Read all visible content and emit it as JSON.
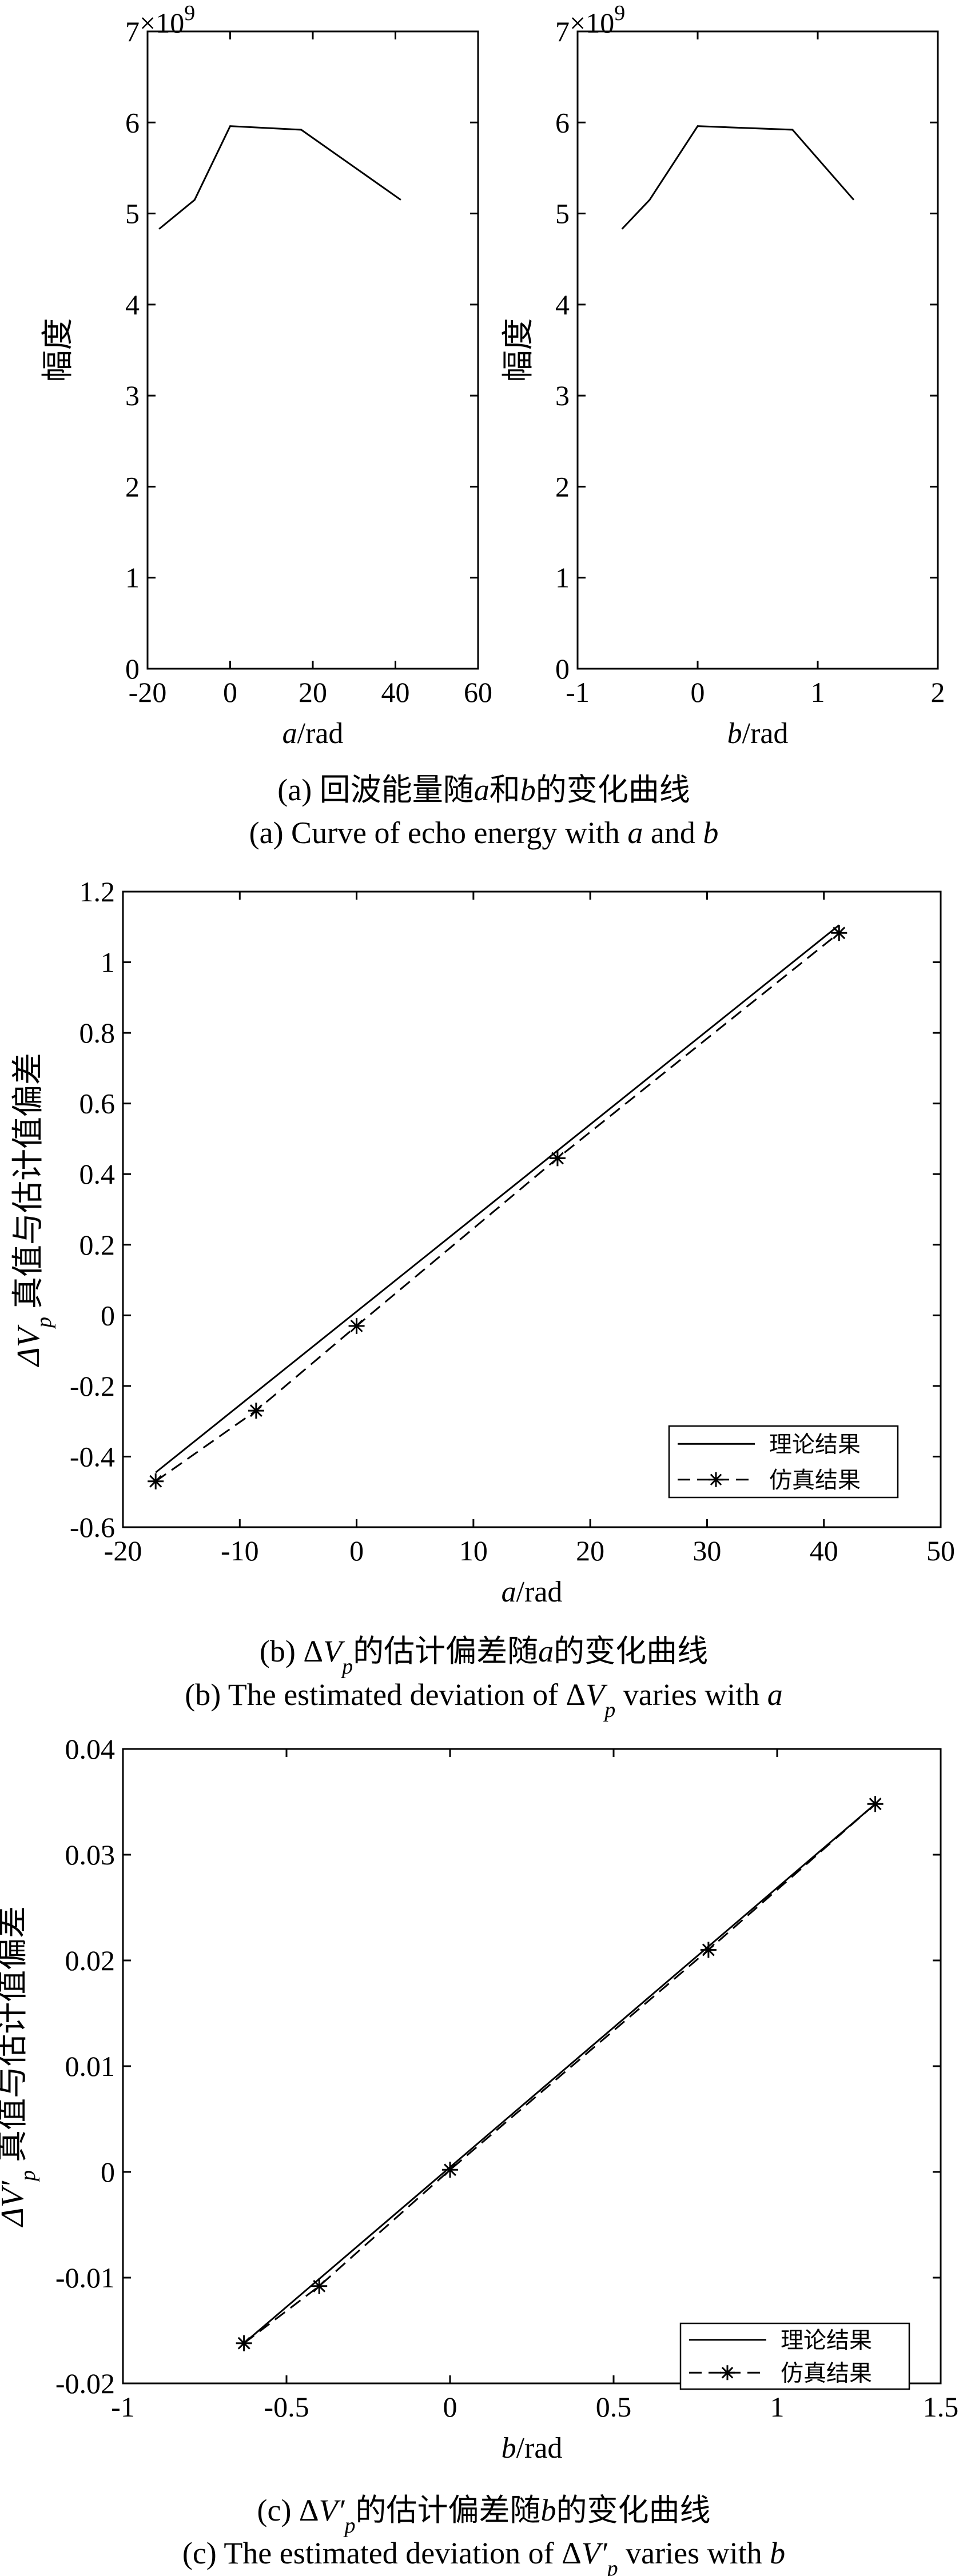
{
  "chart_data": [
    {
      "id": "a1",
      "type": "line",
      "xlim": [
        -20,
        60
      ],
      "ylim": [
        0,
        7
      ],
      "xticks": [
        "-20",
        "0",
        "20",
        "40",
        "60"
      ],
      "yticks": [
        "0",
        "1",
        "2",
        "3",
        "4",
        "5",
        "6",
        "7"
      ],
      "exponent_base": "×10",
      "exponent_power": "9",
      "ylabel": "幅度",
      "xlabel_var": "a",
      "xlabel_unit": "/rad",
      "grid": false,
      "series": [
        {
          "x": [
            -17.2,
            -8.6,
            0,
            17.2,
            41.3
          ],
          "y": [
            4.83,
            5.15,
            5.96,
            5.92,
            5.15
          ]
        }
      ]
    },
    {
      "id": "a2",
      "type": "line",
      "xlim": [
        -1,
        2
      ],
      "ylim": [
        0,
        7
      ],
      "xticks": [
        "-1",
        "0",
        "1",
        "2"
      ],
      "yticks": [
        "0",
        "1",
        "2",
        "3",
        "4",
        "5",
        "6",
        "7"
      ],
      "exponent_base": "×10",
      "exponent_power": "9",
      "ylabel": "幅度",
      "xlabel_var": "b",
      "xlabel_unit": "/rad",
      "grid": false,
      "series": [
        {
          "x": [
            -0.63,
            -0.4,
            0,
            0.79,
            1.3
          ],
          "y": [
            4.83,
            5.15,
            5.96,
            5.92,
            5.15
          ]
        }
      ]
    },
    {
      "id": "b",
      "type": "line",
      "xlim": [
        -20,
        50
      ],
      "ylim": [
        -0.6,
        1.2
      ],
      "xticks": [
        "-20",
        "-10",
        "0",
        "10",
        "20",
        "30",
        "40",
        "50"
      ],
      "yticks": [
        "-0.6",
        "-0.4",
        "-0.2",
        "0",
        "0.2",
        "0.4",
        "0.6",
        "0.8",
        "1",
        "1.2"
      ],
      "ylabel_sym": "ΔV",
      "ylabel_sub": "p",
      "ylabel_text": " 真值与估计值偏差",
      "xlabel_var": "a",
      "xlabel_unit": "/rad",
      "legend_position": "bottom-right",
      "grid": false,
      "series": [
        {
          "name": "理论结果",
          "style": "solid",
          "x": [
            -17.2,
            41.3
          ],
          "y": [
            -0.445,
            1.105
          ]
        },
        {
          "name": "仿真结果",
          "style": "dashed-star",
          "x": [
            -17.2,
            -8.6,
            0,
            17.2,
            41.3
          ],
          "y": [
            -0.47,
            -0.27,
            -0.03,
            0.445,
            1.083
          ]
        }
      ]
    },
    {
      "id": "c",
      "type": "line",
      "xlim": [
        -1,
        1.5
      ],
      "ylim": [
        -0.02,
        0.04
      ],
      "xticks": [
        "-1",
        "-0.5",
        "0",
        "0.5",
        "1",
        "1.5"
      ],
      "yticks": [
        "-0.02",
        "-0.01",
        "0",
        "0.01",
        "0.02",
        "0.03",
        "0.04"
      ],
      "ylabel_sym": "ΔV′",
      "ylabel_sub": "p",
      "ylabel_text": " 真值与估计值偏差",
      "xlabel_var": "b",
      "xlabel_unit": "/rad",
      "legend_position": "bottom-right",
      "grid": false,
      "series": [
        {
          "name": "理论结果",
          "style": "solid",
          "x": [
            -0.63,
            1.3
          ],
          "y": [
            -0.0162,
            0.0348
          ]
        },
        {
          "name": "仿真结果",
          "style": "dashed-star",
          "x": [
            -0.63,
            -0.4,
            0,
            0.79,
            1.3
          ],
          "y": [
            -0.0162,
            -0.0108,
            0.0002,
            0.021,
            0.0348
          ]
        }
      ]
    }
  ],
  "captions": {
    "a_cn_pre": "(a) 回波能量随",
    "a_cn_var1": "a",
    "a_cn_mid": "和",
    "a_cn_var2": "b",
    "a_cn_post": "的变化曲线",
    "a_en_pre": "(a) Curve of echo energy with ",
    "a_en_var1": "a",
    "a_en_mid": " and ",
    "a_en_var2": "b",
    "b_cn_pre": "(b)  Δ",
    "b_cn_sym": "V",
    "b_cn_sub": "p",
    "b_cn_mid": "的估计偏差随",
    "b_cn_var": "a",
    "b_cn_post": "的变化曲线",
    "b_en_pre": "(b) The estimated deviation of  Δ",
    "b_en_sym": "V",
    "b_en_sub": "p",
    "b_en_mid": " varies with ",
    "b_en_var": "a",
    "c_cn_pre": "(c) Δ",
    "c_cn_sym": "V′",
    "c_cn_sub": "p",
    "c_cn_mid": "的估计偏差随",
    "c_cn_var": "b",
    "c_cn_post": "的变化曲线",
    "c_en_pre": "(c) The estimated deviation of   Δ",
    "c_en_sym": "V′",
    "c_en_sub": "p",
    "c_en_mid": " varies with ",
    "c_en_var": "b"
  }
}
